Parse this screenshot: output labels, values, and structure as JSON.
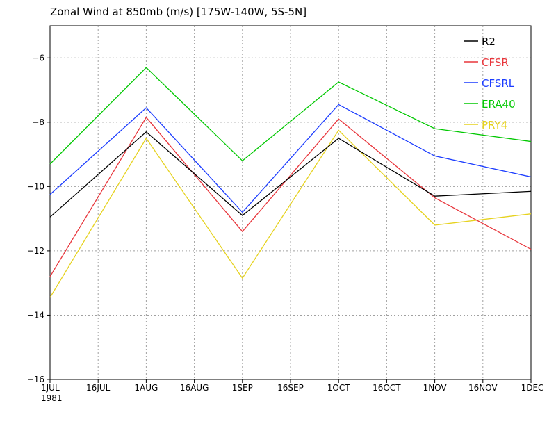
{
  "chart_data": {
    "type": "line",
    "title": "Zonal Wind at 850mb (m/s) [175W-140W, 5S-5N]",
    "xlabel": "",
    "ylabel": "",
    "x": [
      "1JUL",
      "1AUG",
      "1SEP",
      "1OCT",
      "1NOV",
      "1DEC"
    ],
    "x_tick_labels": [
      "1JUL",
      "16JUL",
      "1AUG",
      "16AUG",
      "1SEP",
      "16SEP",
      "1OCT",
      "16OCT",
      "1NOV",
      "16NOV",
      "1DEC"
    ],
    "x_year_label": "1981",
    "y_ticks": [
      "-6",
      "-8",
      "-10",
      "-12",
      "-14",
      "-16"
    ],
    "ylim": [
      -16,
      -5
    ],
    "grid": true,
    "legend_position": "top-right",
    "series": [
      {
        "name": "R2",
        "color": "#000000",
        "values": [
          -10.95,
          -8.3,
          -10.9,
          -8.5,
          -10.3,
          -10.15
        ]
      },
      {
        "name": "CFSR",
        "color": "#e8363c",
        "values": [
          -12.8,
          -7.85,
          -11.4,
          -7.9,
          -10.35,
          -11.95
        ]
      },
      {
        "name": "CFSRL",
        "color": "#1b3cff",
        "values": [
          -10.25,
          -7.55,
          -10.8,
          -7.45,
          -9.05,
          -9.7
        ]
      },
      {
        "name": "ERA40",
        "color": "#00c800",
        "values": [
          -9.3,
          -6.3,
          -9.2,
          -6.75,
          -8.2,
          -8.6
        ]
      },
      {
        "name": "PRY4",
        "color": "#e6d21e",
        "values": [
          -13.45,
          -8.5,
          -12.85,
          -8.25,
          -11.2,
          -10.85
        ]
      }
    ]
  }
}
